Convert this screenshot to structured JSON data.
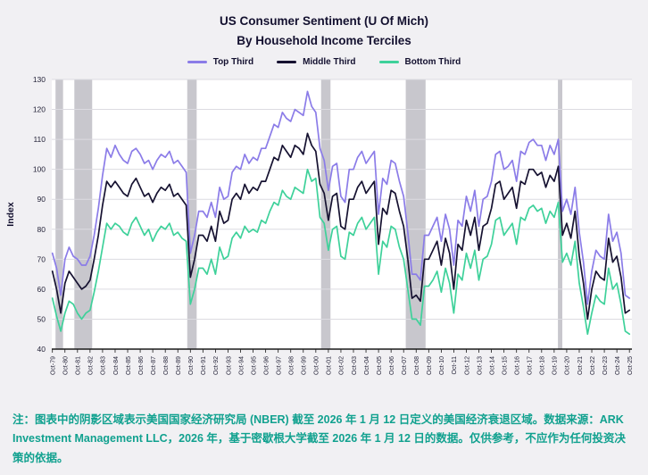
{
  "chart": {
    "title_line1": "US Consumer Sentiment (U Of Mich)",
    "title_line2": "By Household Income Terciles",
    "ylabel": "Index"
  },
  "footnote": {
    "text": "注：图表中的阴影区域表示美国国家经济研究局 (NBER) 截至 2026 年 1 月 12 日定义的美国经济衰退区域。数据来源：ARK Investment Management LLC，2026 年，基于密歇根大学截至 2026 年 1 月 12 日的数据。仅供参考，不应作为任何投资决策的依据。"
  },
  "colors": {
    "background": "#f1f0f3",
    "plot_background": "#ffffff",
    "grid": "#dcdbe1",
    "recession_band": "#c8c7cd",
    "axis": "#1b1b1b",
    "tick_text": "#26253a",
    "title": "#13102f",
    "footnote": "#11a18f"
  },
  "chart_data": {
    "type": "line",
    "title": "US Consumer Sentiment (U Of Mich) By Household Income Terciles",
    "xlabel": "",
    "ylabel": "Index",
    "ylim": [
      40,
      130
    ],
    "yticks": [
      40,
      50,
      60,
      70,
      80,
      90,
      100,
      110,
      120,
      130
    ],
    "xlim": [
      1979.7,
      2025.95
    ],
    "x_start": 1979.75,
    "x_end": 2025.75,
    "x_tick_step_years": 1,
    "x_tick_labels": [
      "Oct-79",
      "Oct-80",
      "Oct-81",
      "Oct-82",
      "Oct-83",
      "Oct-84",
      "Oct-85",
      "Oct-86",
      "Oct-87",
      "Oct-88",
      "Oct-89",
      "Oct-90",
      "Oct-91",
      "Oct-92",
      "Oct-93",
      "Oct-94",
      "Oct-95",
      "Oct-96",
      "Oct-97",
      "Oct-98",
      "Oct-99",
      "Oct-00",
      "Oct-01",
      "Oct-02",
      "Oct-03",
      "Oct-04",
      "Oct-05",
      "Oct-06",
      "Oct-07",
      "Oct-08",
      "Oct-09",
      "Oct-10",
      "Oct-11",
      "Oct-12",
      "Oct-13",
      "Oct-14",
      "Oct-15",
      "Oct-16",
      "Oct-17",
      "Oct-18",
      "Oct-19",
      "Oct-20",
      "Oct-21",
      "Oct-22",
      "Oct-23",
      "Oct-24",
      "Oct-25"
    ],
    "grid": "horizontal",
    "legend_position": "top-center",
    "recession_bands": [
      [
        1980.0,
        1980.6
      ],
      [
        1981.5,
        1982.92
      ],
      [
        1990.5,
        1991.25
      ],
      [
        2001.17,
        2001.92
      ],
      [
        2007.92,
        2009.5
      ],
      [
        2020.05,
        2020.4
      ]
    ],
    "series": [
      {
        "name": "Top Third",
        "color": "#8b7ce8",
        "values": [
          72,
          67,
          58,
          70,
          74,
          71,
          70,
          68,
          68,
          71,
          78,
          87,
          98,
          107,
          104,
          108,
          105,
          103,
          102,
          106,
          107,
          105,
          102,
          103,
          100,
          103,
          105,
          104,
          106,
          102,
          103,
          101,
          99,
          72,
          78,
          86,
          86,
          84,
          89,
          84,
          94,
          90,
          91,
          99,
          101,
          100,
          105,
          102,
          104,
          103,
          107,
          107,
          111,
          115,
          114,
          119,
          117,
          116,
          120,
          119,
          118,
          126,
          121,
          119,
          107,
          103,
          93,
          101,
          102,
          91,
          89,
          100,
          100,
          104,
          106,
          102,
          104,
          106,
          85,
          97,
          95,
          103,
          102,
          96,
          91,
          79,
          65,
          65,
          63,
          78,
          78,
          81,
          84,
          76,
          85,
          80,
          68,
          83,
          81,
          91,
          86,
          93,
          81,
          90,
          91,
          96,
          105,
          106,
          100,
          101,
          103,
          96,
          106,
          105,
          109,
          110,
          108,
          108,
          103,
          108,
          105,
          110,
          86,
          90,
          85,
          94,
          79,
          69,
          55,
          66,
          73,
          71,
          70,
          85,
          76,
          79,
          72,
          58,
          57
        ]
      },
      {
        "name": "Middle Third",
        "color": "#161231",
        "values": [
          66,
          60,
          52,
          62,
          66,
          64,
          62,
          60,
          61,
          63,
          70,
          78,
          88,
          96,
          94,
          96,
          94,
          92,
          91,
          95,
          97,
          94,
          91,
          92,
          89,
          92,
          94,
          93,
          95,
          91,
          92,
          90,
          88,
          64,
          70,
          78,
          78,
          76,
          81,
          76,
          86,
          82,
          83,
          90,
          92,
          90,
          95,
          92,
          94,
          93,
          96,
          96,
          100,
          104,
          103,
          108,
          106,
          104,
          108,
          107,
          105,
          112,
          108,
          106,
          95,
          92,
          83,
          91,
          92,
          81,
          80,
          90,
          90,
          94,
          96,
          92,
          94,
          96,
          75,
          87,
          85,
          93,
          92,
          86,
          81,
          70,
          57,
          58,
          56,
          70,
          70,
          73,
          76,
          68,
          77,
          72,
          60,
          75,
          73,
          83,
          78,
          84,
          73,
          81,
          82,
          87,
          95,
          96,
          90,
          92,
          94,
          87,
          96,
          95,
          100,
          100,
          98,
          99,
          94,
          98,
          96,
          101,
          78,
          82,
          77,
          86,
          71,
          62,
          50,
          60,
          66,
          64,
          63,
          77,
          69,
          71,
          64,
          52,
          53
        ]
      },
      {
        "name": "Bottom Third",
        "color": "#3ed19a",
        "values": [
          57,
          51,
          46,
          52,
          56,
          55,
          52,
          50,
          52,
          53,
          59,
          66,
          74,
          82,
          80,
          82,
          81,
          79,
          78,
          82,
          84,
          81,
          78,
          80,
          76,
          79,
          81,
          80,
          82,
          78,
          79,
          77,
          76,
          55,
          60,
          67,
          67,
          65,
          70,
          65,
          74,
          70,
          71,
          77,
          79,
          77,
          81,
          79,
          80,
          79,
          83,
          82,
          86,
          89,
          88,
          93,
          91,
          90,
          94,
          93,
          92,
          100,
          96,
          97,
          84,
          82,
          73,
          80,
          81,
          71,
          70,
          79,
          78,
          82,
          84,
          80,
          82,
          84,
          65,
          76,
          74,
          81,
          80,
          74,
          70,
          60,
          50,
          50,
          48,
          61,
          61,
          63,
          66,
          59,
          67,
          62,
          52,
          65,
          63,
          72,
          67,
          73,
          63,
          70,
          71,
          75,
          83,
          84,
          78,
          80,
          82,
          75,
          84,
          83,
          87,
          88,
          86,
          87,
          82,
          86,
          84,
          89,
          69,
          72,
          68,
          76,
          62,
          54,
          45,
          52,
          58,
          56,
          55,
          67,
          60,
          62,
          55,
          46,
          45
        ]
      }
    ]
  }
}
